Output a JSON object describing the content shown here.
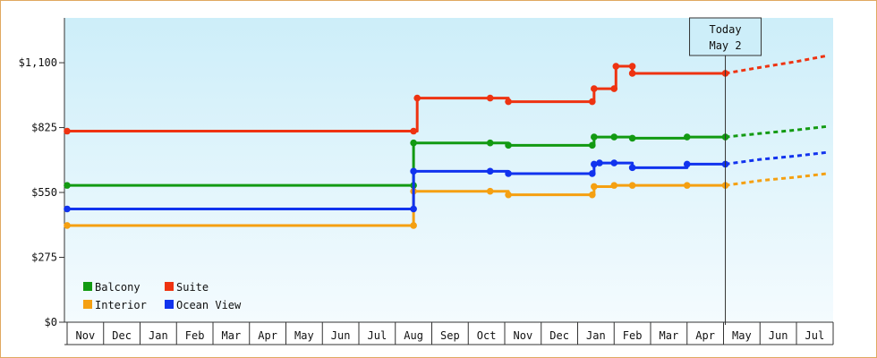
{
  "chart_data": {
    "type": "line",
    "subtype": "step",
    "y_ticks": [
      "$0",
      "$275",
      "$550",
      "$825",
      "$1,100"
    ],
    "y_tick_values": [
      0,
      275,
      550,
      825,
      1100
    ],
    "ylim": [
      0,
      1290
    ],
    "x_months": [
      "Nov",
      "Dec",
      "Jan",
      "Feb",
      "Mar",
      "Apr",
      "May",
      "Jun",
      "Jul",
      "Aug",
      "Sep",
      "Oct",
      "Nov",
      "Dec",
      "Jan",
      "Feb",
      "Mar",
      "Apr",
      "May",
      "Jun",
      "Jul"
    ],
    "x_month_start_indices": [
      0,
      1,
      2,
      3,
      4,
      5,
      6,
      7,
      8,
      9,
      10,
      11,
      12,
      13,
      14,
      15,
      16,
      17,
      18,
      19,
      20
    ],
    "xlim": [
      0,
      20.85
    ],
    "today": {
      "title": "Today",
      "date": "May 2",
      "x": 18.05
    },
    "grid": false,
    "legend_position": "bottom-left",
    "series": [
      {
        "name": "Balcony",
        "color": "#129a12",
        "points": [
          [
            0.0,
            580
          ],
          [
            9.5,
            580
          ],
          [
            9.5,
            760
          ],
          [
            11.6,
            760
          ],
          [
            12.1,
            750
          ],
          [
            14.4,
            750
          ],
          [
            14.45,
            785
          ],
          [
            15.0,
            785
          ],
          [
            15.5,
            780
          ],
          [
            17.0,
            785
          ],
          [
            18.05,
            785
          ]
        ],
        "forecast": [
          [
            18.05,
            785
          ],
          [
            19.0,
            800
          ],
          [
            20.0,
            815
          ],
          [
            20.85,
            830
          ]
        ]
      },
      {
        "name": "Interior",
        "color": "#f5a011",
        "points": [
          [
            0.0,
            410
          ],
          [
            9.5,
            410
          ],
          [
            9.5,
            555
          ],
          [
            11.6,
            555
          ],
          [
            12.1,
            540
          ],
          [
            14.4,
            540
          ],
          [
            14.45,
            575
          ],
          [
            15.0,
            580
          ],
          [
            15.5,
            580
          ],
          [
            17.0,
            580
          ],
          [
            18.05,
            580
          ]
        ],
        "forecast": [
          [
            18.05,
            580
          ],
          [
            19.0,
            600
          ],
          [
            20.0,
            615
          ],
          [
            20.85,
            630
          ]
        ]
      },
      {
        "name": "Suite",
        "color": "#ee3311",
        "points": [
          [
            0.0,
            810
          ],
          [
            9.5,
            810
          ],
          [
            9.6,
            950
          ],
          [
            11.6,
            950
          ],
          [
            12.1,
            935
          ],
          [
            14.4,
            935
          ],
          [
            14.45,
            990
          ],
          [
            15.0,
            990
          ],
          [
            15.05,
            1085
          ],
          [
            15.5,
            1085
          ],
          [
            15.5,
            1055
          ],
          [
            18.05,
            1055
          ]
        ],
        "forecast": [
          [
            18.05,
            1055
          ],
          [
            19.0,
            1080
          ],
          [
            20.0,
            1105
          ],
          [
            20.85,
            1130
          ]
        ]
      },
      {
        "name": "Ocean View",
        "color": "#1133ee",
        "points": [
          [
            0.0,
            480
          ],
          [
            9.5,
            480
          ],
          [
            9.5,
            640
          ],
          [
            11.6,
            640
          ],
          [
            12.1,
            630
          ],
          [
            14.4,
            630
          ],
          [
            14.45,
            670
          ],
          [
            14.6,
            675
          ],
          [
            15.0,
            675
          ],
          [
            15.5,
            655
          ],
          [
            17.0,
            670
          ],
          [
            18.05,
            670
          ]
        ],
        "forecast": [
          [
            18.05,
            670
          ],
          [
            19.0,
            690
          ],
          [
            20.0,
            705
          ],
          [
            20.85,
            720
          ]
        ]
      }
    ]
  }
}
